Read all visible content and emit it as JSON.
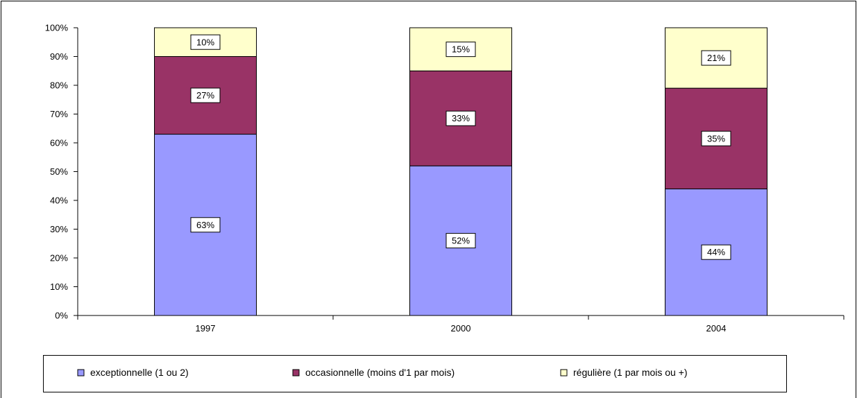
{
  "chart_data": {
    "type": "bar",
    "stacked": true,
    "percent": true,
    "categories": [
      "1997",
      "2000",
      "2004"
    ],
    "series": [
      {
        "name": "exceptionnelle (1 ou 2)",
        "values": [
          63,
          52,
          44
        ],
        "labels": [
          "63%",
          "52%",
          "44%"
        ],
        "color": "#9999ff"
      },
      {
        "name": "occasionnelle (moins d'1 par mois)",
        "values": [
          27,
          33,
          35
        ],
        "labels": [
          "27%",
          "33%",
          "35%"
        ],
        "color": "#993366"
      },
      {
        "name": "régulière (1 par mois ou +)",
        "values": [
          10,
          15,
          21
        ],
        "labels": [
          "10%",
          "15%",
          "21%"
        ],
        "color": "#ffffcc"
      }
    ],
    "ylim": [
      0,
      100
    ],
    "yticks": [
      "0%",
      "10%",
      "20%",
      "30%",
      "40%",
      "50%",
      "60%",
      "70%",
      "80%",
      "90%",
      "100%"
    ],
    "grid": false,
    "legend_position": "bottom"
  }
}
